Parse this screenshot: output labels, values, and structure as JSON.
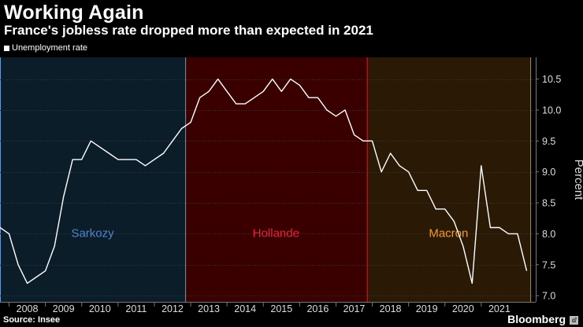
{
  "title": "Working Again",
  "subtitle": "France's jobless rate dropped more than expected in 2021",
  "legend_label": "Unemployment rate",
  "source": "Source: Insee",
  "brand": "Bloomberg",
  "chart_data": {
    "type": "line",
    "ylabel": "Percent",
    "ylim": [
      6.9,
      10.85
    ],
    "xlim": [
      2007.25,
      2022.0
    ],
    "y_ticks": [
      7.0,
      7.5,
      8.0,
      8.5,
      9.0,
      9.5,
      10.0,
      10.5
    ],
    "y_tick_labels": [
      "7.0",
      "7.5",
      "8.0",
      "8.5",
      "9.0",
      "9.5",
      "10.0",
      "10.5"
    ],
    "x_ticks": [
      2008,
      2009,
      2010,
      2011,
      2012,
      2013,
      2014,
      2015,
      2016,
      2017,
      2018,
      2019,
      2020,
      2021
    ],
    "series": [
      {
        "name": "Unemployment rate",
        "color": "#ffffff",
        "x": [
          2007.25,
          2007.5,
          2007.75,
          2008.0,
          2008.25,
          2008.5,
          2008.75,
          2009.0,
          2009.25,
          2009.5,
          2009.75,
          2010.0,
          2010.25,
          2010.5,
          2010.75,
          2011.0,
          2011.25,
          2011.5,
          2011.75,
          2012.0,
          2012.25,
          2012.5,
          2012.75,
          2013.0,
          2013.25,
          2013.5,
          2013.75,
          2014.0,
          2014.25,
          2014.5,
          2014.75,
          2015.0,
          2015.25,
          2015.5,
          2015.75,
          2016.0,
          2016.25,
          2016.5,
          2016.75,
          2017.0,
          2017.25,
          2017.5,
          2017.75,
          2018.0,
          2018.25,
          2018.5,
          2018.75,
          2019.0,
          2019.25,
          2019.5,
          2019.75,
          2020.0,
          2020.25,
          2020.5,
          2020.75,
          2021.0,
          2021.25,
          2021.5,
          2021.75
        ],
        "values": [
          8.1,
          8.0,
          7.5,
          7.2,
          7.3,
          7.4,
          7.8,
          8.6,
          9.2,
          9.2,
          9.5,
          9.4,
          9.3,
          9.2,
          9.2,
          9.2,
          9.1,
          9.2,
          9.3,
          9.5,
          9.7,
          9.8,
          10.2,
          10.3,
          10.5,
          10.3,
          10.1,
          10.1,
          10.2,
          10.3,
          10.5,
          10.3,
          10.5,
          10.4,
          10.2,
          10.2,
          10.0,
          9.9,
          10.0,
          9.6,
          9.5,
          9.5,
          9.0,
          9.3,
          9.1,
          9.0,
          8.7,
          8.7,
          8.4,
          8.4,
          8.2,
          7.8,
          7.2,
          9.1,
          8.1,
          8.1,
          8.0,
          8.0,
          7.4
        ]
      }
    ],
    "periods": [
      {
        "label": "Sarkozy",
        "start": 2007.25,
        "end": 2012.35,
        "fill": "#0c1d2a",
        "edge": "#6a9ad0",
        "text_color": "#4f83c9"
      },
      {
        "label": "Hollande",
        "start": 2012.35,
        "end": 2017.35,
        "fill": "#3a0000",
        "edge": "#d02020",
        "text_color": "#e8203a"
      },
      {
        "label": "Macron",
        "start": 2017.35,
        "end": 2021.85,
        "fill": "#2a1a05",
        "edge": "#e07a1a",
        "text_color": "#f29a2e"
      }
    ]
  }
}
